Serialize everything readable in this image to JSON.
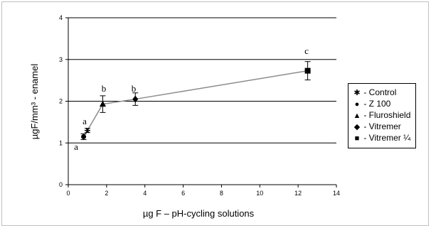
{
  "chart_data": {
    "type": "scatter",
    "xlabel": "µg F – pH-cycling solutions",
    "ylabel": "µgF/mm³ - enamel",
    "xlim": [
      0,
      14
    ],
    "ylim": [
      0,
      4
    ],
    "xticks": [
      "0",
      "2",
      "4",
      "6",
      "8",
      "10",
      "12",
      "14"
    ],
    "yticks": [
      "0",
      "1",
      "2",
      "3",
      "4"
    ],
    "grid": "horizontal",
    "legend_position": "right",
    "connect_points": true,
    "line_color": "#8c8c8c",
    "marker_color": "#000000",
    "series": [
      {
        "name": "Control",
        "symbol": "asterisk",
        "x": 1.0,
        "y": 1.3,
        "err": 0.05,
        "letter": "a"
      },
      {
        "name": "Z 100",
        "symbol": "circle",
        "x": 0.8,
        "y": 1.15,
        "err": 0.07,
        "letter": "a"
      },
      {
        "name": "Fluroshield",
        "symbol": "triangle",
        "x": 1.8,
        "y": 1.93,
        "err": 0.2,
        "letter": "b"
      },
      {
        "name": "Vitremer",
        "symbol": "diamond",
        "x": 3.5,
        "y": 2.05,
        "err": 0.15,
        "letter": "b"
      },
      {
        "name": "Vitremer ¼",
        "symbol": "square",
        "x": 12.5,
        "y": 2.73,
        "err": 0.22,
        "letter": "c"
      }
    ]
  },
  "legend": {
    "items": [
      {
        "glyph": "✱",
        "text": "- Control"
      },
      {
        "glyph": "●",
        "text": "- Z 100"
      },
      {
        "glyph": "▲",
        "text": "- Fluroshield"
      },
      {
        "glyph": "◆",
        "text": "- Vitremer"
      },
      {
        "glyph": "■",
        "text": "- Vitremer ¼"
      }
    ]
  },
  "annotations": {
    "letter_a_low": "a",
    "letter_a": "a",
    "letter_b_1": "b",
    "letter_b_2": "b",
    "letter_c": "c"
  }
}
